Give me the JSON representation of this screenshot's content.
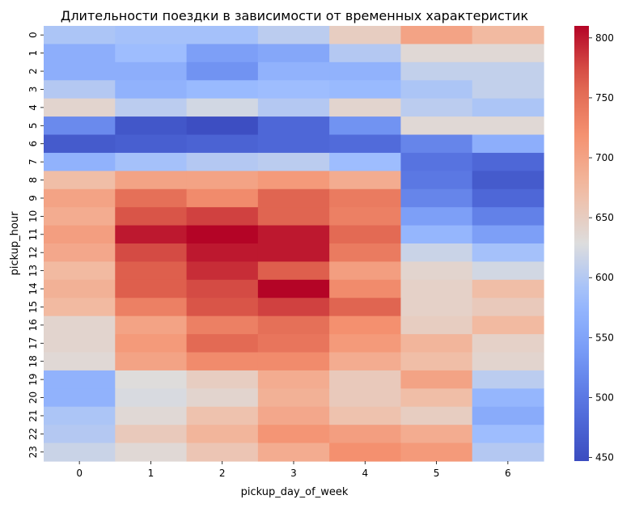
{
  "chart_data": {
    "type": "heatmap",
    "title": "Длительности поездки в зависимости от временных характеристик",
    "xlabel": "pickup_day_of_week",
    "ylabel": "pickup_hour",
    "x_categories": [
      "0",
      "1",
      "2",
      "3",
      "4",
      "5",
      "6"
    ],
    "y_categories": [
      "0",
      "1",
      "2",
      "3",
      "4",
      "5",
      "6",
      "7",
      "8",
      "9",
      "10",
      "11",
      "12",
      "13",
      "14",
      "15",
      "16",
      "17",
      "18",
      "19",
      "20",
      "21",
      "22",
      "23"
    ],
    "values": [
      [
        595,
        590,
        590,
        605,
        650,
        700,
        675
      ],
      [
        565,
        585,
        545,
        555,
        600,
        635,
        635
      ],
      [
        565,
        565,
        530,
        570,
        570,
        610,
        610
      ],
      [
        600,
        570,
        580,
        585,
        580,
        595,
        610
      ],
      [
        640,
        605,
        620,
        600,
        640,
        605,
        595
      ],
      [
        520,
        460,
        450,
        480,
        530,
        635,
        635
      ],
      [
        465,
        470,
        475,
        480,
        485,
        515,
        565
      ],
      [
        570,
        590,
        600,
        605,
        585,
        495,
        480
      ],
      [
        670,
        700,
        700,
        710,
        690,
        500,
        465
      ],
      [
        700,
        750,
        725,
        760,
        740,
        515,
        480
      ],
      [
        690,
        770,
        780,
        760,
        735,
        545,
        510
      ],
      [
        705,
        800,
        810,
        800,
        755,
        575,
        545
      ],
      [
        695,
        775,
        800,
        800,
        740,
        615,
        590
      ],
      [
        675,
        765,
        790,
        765,
        705,
        640,
        620
      ],
      [
        685,
        765,
        775,
        810,
        725,
        645,
        670
      ],
      [
        675,
        735,
        770,
        780,
        760,
        645,
        655
      ],
      [
        640,
        700,
        735,
        750,
        720,
        650,
        675
      ],
      [
        640,
        710,
        755,
        745,
        710,
        680,
        645
      ],
      [
        635,
        700,
        725,
        725,
        690,
        670,
        640
      ],
      [
        570,
        630,
        650,
        690,
        655,
        700,
        605
      ],
      [
        570,
        625,
        640,
        685,
        655,
        670,
        575
      ],
      [
        595,
        635,
        665,
        695,
        665,
        650,
        560
      ],
      [
        600,
        655,
        680,
        715,
        705,
        690,
        585
      ],
      [
        615,
        635,
        660,
        690,
        720,
        710,
        600
      ]
    ],
    "colorbar": {
      "min": 447,
      "max": 810,
      "ticks": [
        450,
        500,
        550,
        600,
        650,
        700,
        750,
        800
      ],
      "colormap": "coolwarm"
    }
  }
}
